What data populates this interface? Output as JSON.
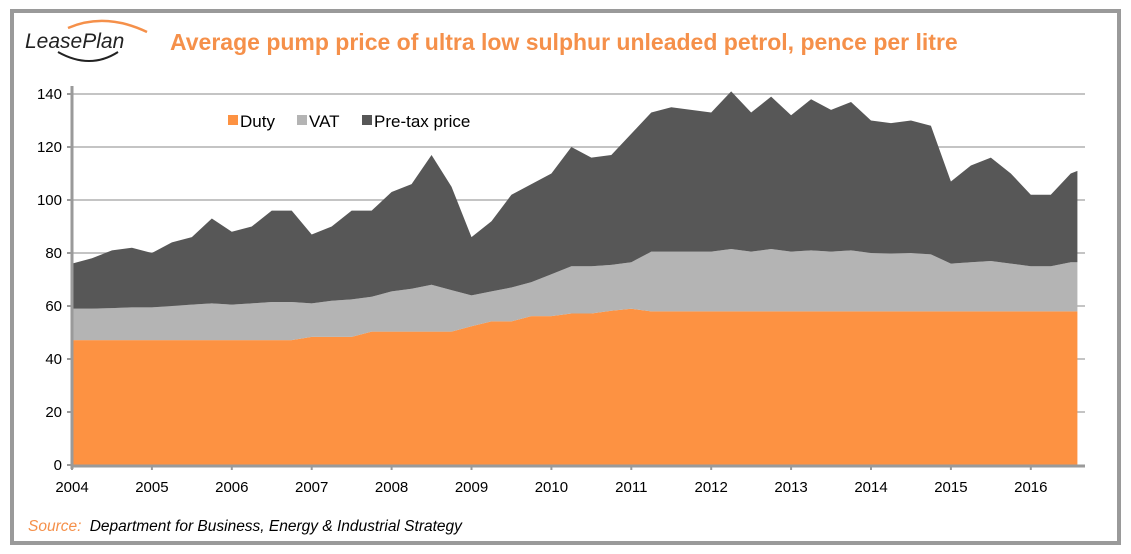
{
  "logo_text": "LeasePlan",
  "source_label": "Source:",
  "source_text": "Department for Business, Energy & Industrial Strategy",
  "chart_data": {
    "type": "area",
    "stacked": true,
    "title": "Average pump price of ultra low sulphur unleaded petrol, pence per litre",
    "xlabel": "",
    "ylabel": "",
    "ylim": [
      0,
      140
    ],
    "yticks": [
      "0",
      "20",
      "40",
      "60",
      "80",
      "100",
      "120",
      "140"
    ],
    "xticks": [
      "2004",
      "2005",
      "2006",
      "2007",
      "2008",
      "2009",
      "2010",
      "2011",
      "2012",
      "2013",
      "2014",
      "2015",
      "2016"
    ],
    "grid": "horizontal",
    "legend_position": "top-left",
    "colors": {
      "Duty": "#FD9242",
      "VAT": "#B4B4B4",
      "Pre-tax price": "#575757"
    },
    "x": [
      "2004-01",
      "2004-04",
      "2004-07",
      "2004-10",
      "2005-01",
      "2005-04",
      "2005-07",
      "2005-10",
      "2006-01",
      "2006-04",
      "2006-07",
      "2006-10",
      "2007-01",
      "2007-04",
      "2007-07",
      "2007-10",
      "2008-01",
      "2008-04",
      "2008-07",
      "2008-10",
      "2009-01",
      "2009-04",
      "2009-07",
      "2009-10",
      "2010-01",
      "2010-04",
      "2010-07",
      "2010-10",
      "2011-01",
      "2011-04",
      "2011-07",
      "2011-10",
      "2012-01",
      "2012-04",
      "2012-07",
      "2012-10",
      "2013-01",
      "2013-04",
      "2013-07",
      "2013-10",
      "2014-01",
      "2014-04",
      "2014-07",
      "2014-10",
      "2015-01",
      "2015-04",
      "2015-07",
      "2015-10",
      "2016-01",
      "2016-04",
      "2016-07",
      "2016-08"
    ],
    "series": [
      {
        "name": "Duty",
        "values": [
          47.1,
          47.1,
          47.1,
          47.1,
          47.1,
          47.1,
          47.1,
          47.1,
          47.1,
          47.1,
          47.1,
          47.1,
          48.35,
          48.35,
          48.35,
          50.35,
          50.35,
          50.35,
          50.35,
          50.35,
          52.35,
          54.19,
          54.19,
          56.19,
          56.19,
          57.19,
          57.19,
          58.19,
          58.95,
          57.95,
          57.95,
          57.95,
          57.95,
          57.95,
          57.95,
          57.95,
          57.95,
          57.95,
          57.95,
          57.95,
          57.95,
          57.95,
          57.95,
          57.95,
          57.95,
          57.95,
          57.95,
          57.95,
          57.95,
          57.95,
          57.95,
          57.95
        ]
      },
      {
        "name": "VAT",
        "values": [
          11.9,
          11.9,
          12.1,
          12.4,
          12.4,
          12.9,
          13.4,
          13.9,
          13.4,
          13.9,
          14.4,
          14.4,
          12.65,
          13.65,
          14.15,
          13.15,
          15.15,
          16.15,
          17.65,
          15.65,
          11.65,
          11.31,
          12.81,
          12.81,
          15.81,
          17.81,
          17.81,
          17.31,
          17.55,
          22.55,
          22.55,
          22.55,
          22.55,
          23.55,
          22.55,
          23.55,
          22.55,
          23.05,
          22.55,
          23.05,
          22.05,
          21.85,
          22.05,
          21.55,
          18.05,
          18.55,
          19.05,
          18.05,
          17.05,
          17.05,
          18.55,
          18.55
        ]
      },
      {
        "name": "Pre-tax price",
        "values": [
          17,
          19,
          21.8,
          22.5,
          20.5,
          24,
          25.5,
          32,
          27.5,
          29,
          34.5,
          34.5,
          26,
          28,
          33.5,
          32.5,
          37.5,
          39.5,
          49,
          39,
          22,
          26.5,
          35,
          37,
          38,
          45,
          41,
          41.5,
          48.5,
          52.5,
          54.5,
          53.5,
          52.5,
          59.5,
          52.5,
          57.5,
          51.5,
          57,
          53.5,
          56,
          50,
          49.2,
          50,
          48.5,
          31,
          36.5,
          39,
          34,
          27,
          27,
          33.5,
          34.5
        ]
      }
    ]
  }
}
